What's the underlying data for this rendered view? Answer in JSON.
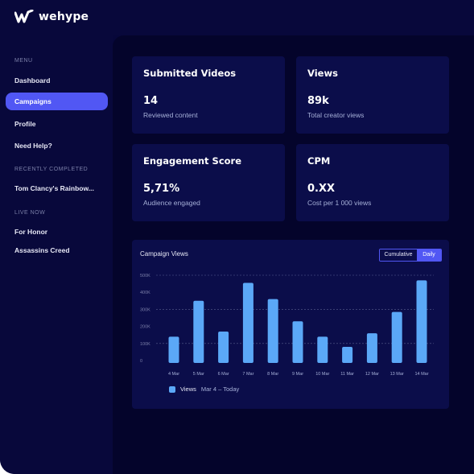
{
  "brand": {
    "name": "wehype"
  },
  "sidebar": {
    "menu_label": "MENU",
    "items": [
      {
        "label": "Dashboard"
      },
      {
        "label": "Campaigns",
        "active": true
      },
      {
        "label": "Profile"
      },
      {
        "label": "Need Help?"
      }
    ],
    "recently_completed_label": "RECENTLY COMPLETED",
    "recently_completed": [
      {
        "label": "Tom Clancy's Rainbow..."
      }
    ],
    "live_now_label": "LIVE NOW",
    "live_now": [
      {
        "label": "For Honor"
      },
      {
        "label": "Assassins Creed"
      }
    ]
  },
  "stats": [
    {
      "title": "Submitted Videos",
      "value": "14",
      "sub": "Reviewed content"
    },
    {
      "title": "Views",
      "value": "89k",
      "sub": "Total creator views"
    },
    {
      "title": "Engagement Score",
      "value": "5,71%",
      "sub": "Audience engaged"
    },
    {
      "title": "CPM",
      "value": "0.XX",
      "sub": "Cost per 1 000 views"
    }
  ],
  "chart": {
    "title": "Campaign Views",
    "toggle": {
      "cumulative": "Cumulative",
      "daily": "Daily",
      "selected": "Daily"
    },
    "legend": {
      "series": "Views",
      "range": "Mar 4 – Today"
    }
  },
  "colors": {
    "accent": "#5157f4",
    "bar": "#5ba8f7",
    "background": "#04042b",
    "card": "#0b0d4a"
  },
  "chart_data": {
    "type": "bar",
    "categories": [
      "4 Mar",
      "5 Mar",
      "6 Mar",
      "7 Mar",
      "8 Mar",
      "9 Mar",
      "10 Mar",
      "11 Mar",
      "12 Mar",
      "13 Mar",
      "14 Mar"
    ],
    "series": [
      {
        "name": "Views",
        "values": [
          140000,
          350000,
          170000,
          455000,
          360000,
          230000,
          140000,
          80000,
          160000,
          285000,
          470000
        ]
      }
    ],
    "yticks": [
      "0",
      "100K",
      "200K",
      "300K",
      "400K",
      "500K"
    ],
    "ylim": [
      0,
      500000
    ],
    "grid": true,
    "legend": "bottom-left"
  }
}
